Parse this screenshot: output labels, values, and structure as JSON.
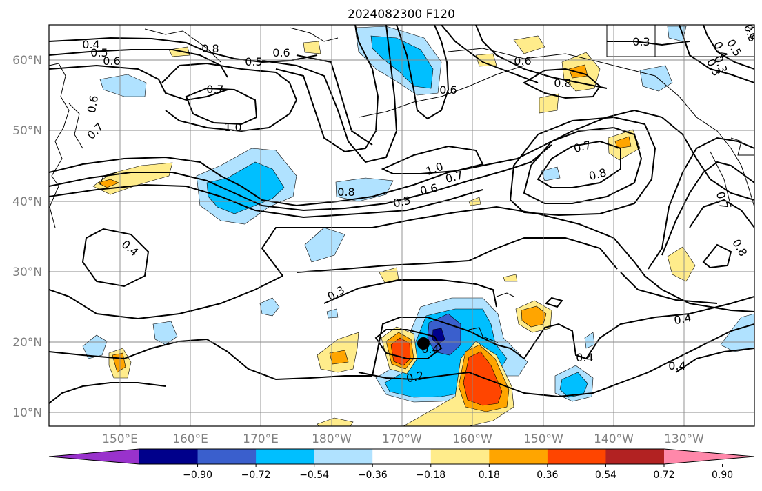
{
  "title": "2024082300 F120",
  "map": {
    "lon_labels": [
      "150°E",
      "160°E",
      "170°E",
      "180°W",
      "170°W",
      "160°W",
      "150°W",
      "140°W",
      "130°W"
    ],
    "lat_labels": [
      "60°N",
      "50°N",
      "40°N",
      "30°N",
      "20°N",
      "10°N"
    ],
    "contour_labels": [
      "0.4",
      "0.5",
      "0.6",
      "0.6",
      "0.7",
      "0.8",
      "0.5",
      "0.6",
      "0.7",
      "1.0",
      "0.6",
      "0.8",
      "0.3",
      "0.6",
      "0.5",
      "0.3",
      "0.8",
      "0.7",
      "0.8",
      "1.0",
      "0.8",
      "0.5",
      "0.6",
      "0.7",
      "0.7",
      "0.8",
      "0.4",
      "0.3",
      "0.4",
      "0.2",
      "0.4",
      "0.4",
      "0.4",
      "0.6",
      "0.4",
      "0.3"
    ],
    "storm_marker": "tropical-cyclone-position"
  },
  "colorbar": {
    "ticks": [
      "−0.90",
      "−0.72",
      "−0.54",
      "−0.36",
      "−0.18",
      "0.18",
      "0.36",
      "0.54",
      "0.72",
      "0.90"
    ],
    "colors": [
      "#9932cc",
      "#00008b",
      "#3a5fcd",
      "#00bfff",
      "#b0e2ff",
      "#ffffff",
      "#ffec8b",
      "#ffa500",
      "#ff4500",
      "#b22222",
      "#ff88aa"
    ]
  }
}
